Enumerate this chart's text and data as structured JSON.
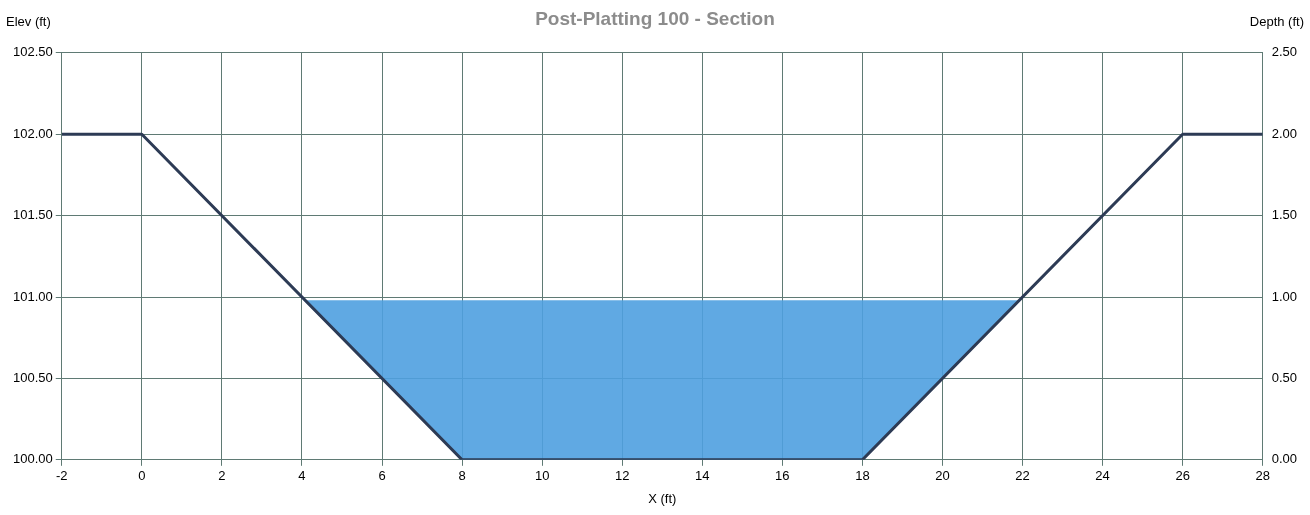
{
  "chart_data": {
    "type": "line",
    "title": "Post-Platting 100 - Section",
    "xlabel": "X (ft)",
    "ylabel": "Elev (ft)",
    "y2label": "Depth (ft)",
    "series": [
      {
        "type": "area",
        "color": "#4fa0e0",
        "x": [
          4.04,
          21.96,
          18,
          8,
          4.04
        ],
        "values": [
          100.98,
          100.98,
          100,
          100,
          100.98
        ]
      },
      {
        "color": "#2d3b55",
        "x": [
          -2,
          0,
          8,
          18,
          26,
          28
        ],
        "values": [
          102,
          102,
          100,
          100,
          102,
          102
        ]
      }
    ],
    "xlim": [
      -2,
      28
    ],
    "xticks": [
      -2,
      0,
      2,
      4,
      6,
      8,
      10,
      12,
      14,
      16,
      18,
      20,
      22,
      24,
      26,
      28
    ],
    "ylim": [
      100,
      102.5
    ],
    "yticks": [
      {
        "value": 100,
        "label": "100.00"
      },
      {
        "value": 100.5,
        "label": "100.50"
      },
      {
        "value": 101,
        "label": "101.00"
      },
      {
        "value": 101.5,
        "label": "101.50"
      },
      {
        "value": 102,
        "label": "102.00"
      },
      {
        "value": 102.5,
        "label": "102.50"
      }
    ],
    "y2lim": [
      0,
      2.5
    ],
    "y2ticks": [
      {
        "value": 0,
        "label": "0.00"
      },
      {
        "value": 0.5,
        "label": "0.50"
      },
      {
        "value": 1,
        "label": "1.00"
      },
      {
        "value": 1.5,
        "label": "1.50"
      },
      {
        "value": 2,
        "label": "2.00"
      },
      {
        "value": 2.5,
        "label": "2.50"
      }
    ],
    "grid": true,
    "marker": "none",
    "line_style": "solid"
  }
}
